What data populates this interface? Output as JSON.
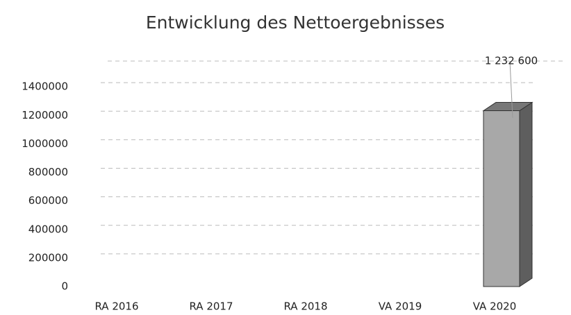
{
  "chart_data": {
    "type": "bar3d",
    "title": "Entwicklung des Nettoergebnisses",
    "categories": [
      "RA 2016",
      "RA 2017",
      "RA 2018",
      "VA 2019",
      "VA 2020"
    ],
    "values": [
      0,
      0,
      0,
      0,
      1232600
    ],
    "value_labels": [
      null,
      null,
      null,
      null,
      "1 232 600"
    ],
    "color": "#a8a8a8",
    "ylim": [
      0,
      1600000
    ],
    "yticks": [
      0,
      200000,
      400000,
      600000,
      800000,
      1000000,
      1200000,
      1400000
    ],
    "grid": true
  }
}
